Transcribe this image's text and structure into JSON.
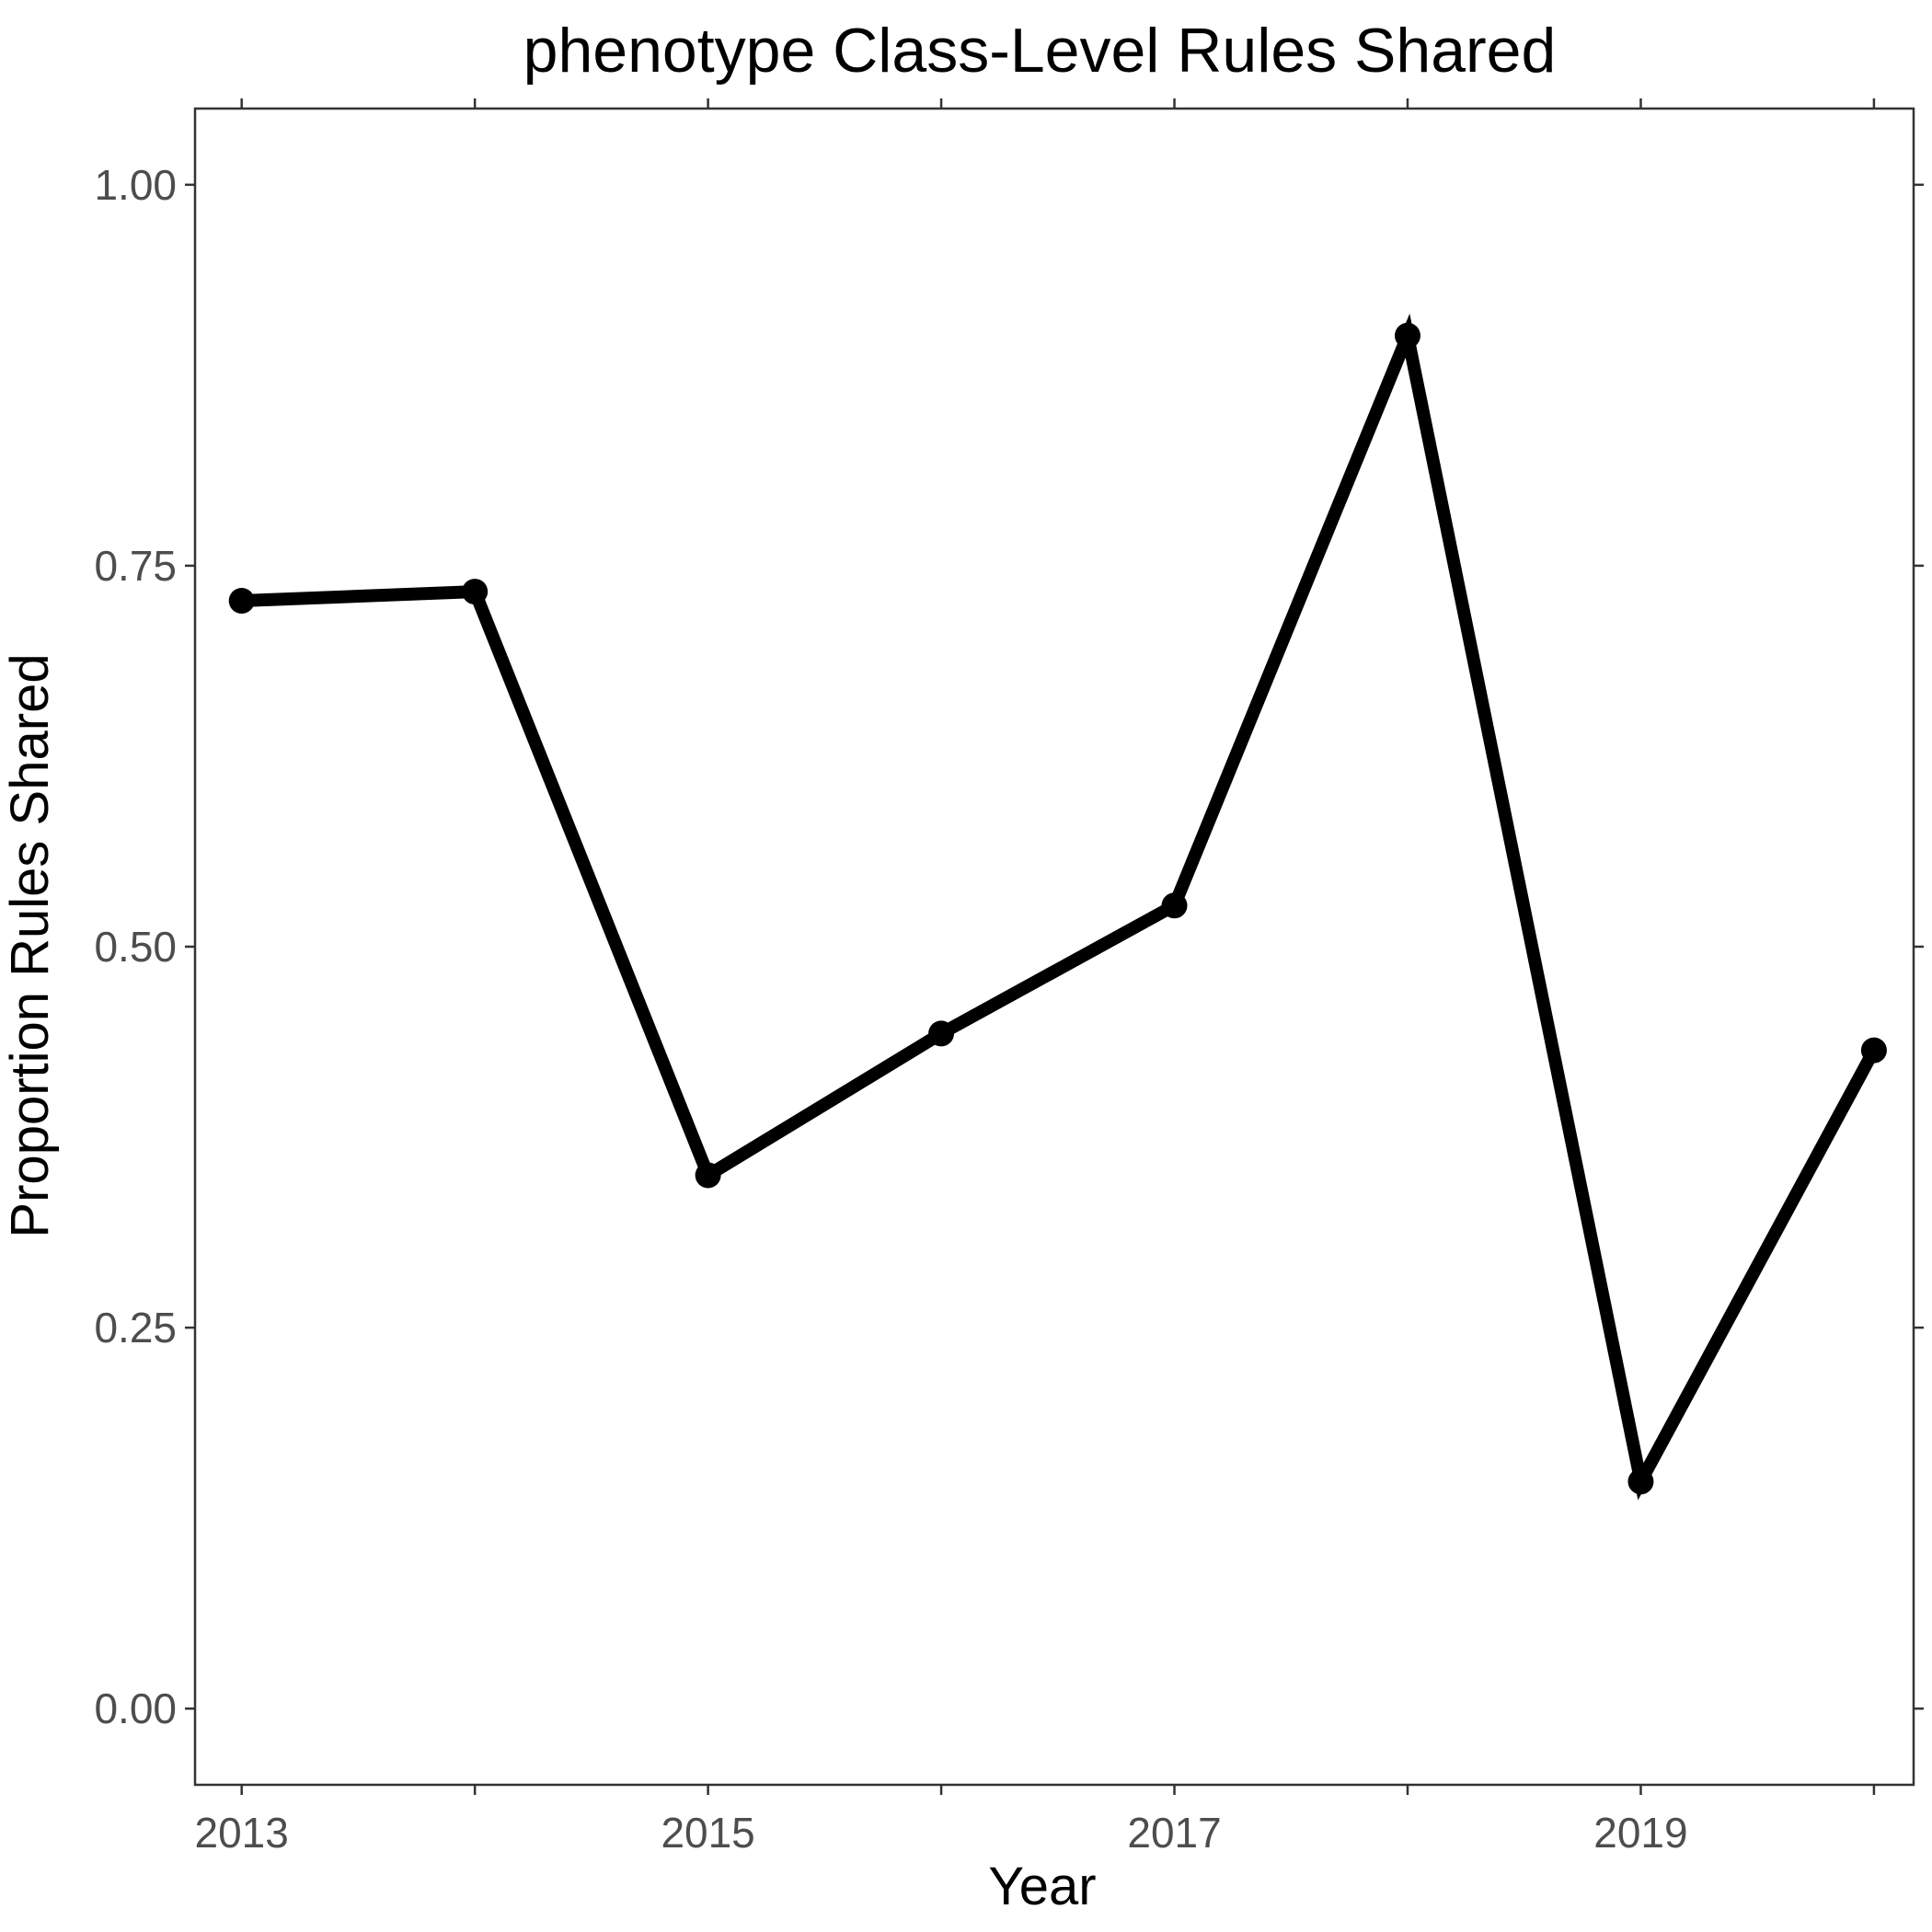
{
  "chart_data": {
    "type": "line",
    "title": "phenotype Class-Level Rules Shared",
    "xlabel": "Year",
    "ylabel": "Proportion Rules Shared",
    "x": [
      2013,
      2014,
      2015,
      2016,
      2017,
      2018,
      2019,
      2020
    ],
    "series": [
      {
        "values": [
          0.727,
          0.733,
          0.35,
          0.443,
          0.527,
          0.901,
          0.149,
          0.432
        ]
      }
    ],
    "xlim": [
      2012.8,
      2020.17
    ],
    "ylim": [
      -0.05,
      1.05
    ],
    "x_ticks": [
      2013,
      2015,
      2017,
      2019
    ],
    "x_tick_labels": [
      "2013",
      "2015",
      "2017",
      "2019"
    ],
    "y_ticks": [
      0,
      0.25,
      0.5,
      0.75,
      1
    ],
    "y_tick_labels": [
      "0.00",
      "0.25",
      "0.50",
      "0.75",
      "1.00"
    ],
    "grid": false,
    "legend": "none",
    "colors": {
      "line": "#000000",
      "tick_text": "#4d4d4d",
      "panel_border": "#333333"
    }
  }
}
